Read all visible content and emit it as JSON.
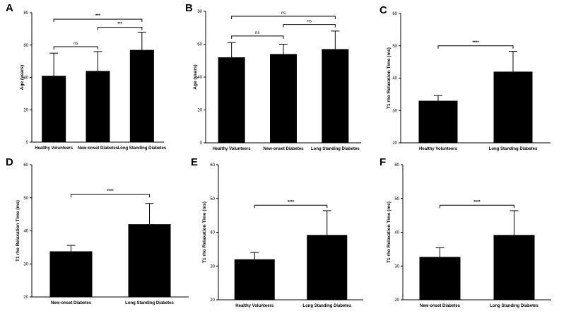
{
  "chart_data": [
    {
      "panel": "A",
      "type": "bar",
      "categories": [
        "Healthy Volunteers",
        "New-onset Diabetes",
        "Long Standing Diabetes"
      ],
      "values": [
        41,
        44,
        57
      ],
      "errors": [
        14,
        12,
        11
      ],
      "ylabel": "Age (years)",
      "ylim": [
        0,
        80
      ],
      "yticks": [
        0,
        20,
        40,
        60,
        80
      ],
      "comparisons": [
        {
          "from": 0,
          "to": 2,
          "label": "***",
          "y": 76
        },
        {
          "from": 0,
          "to": 1,
          "label": "ns",
          "y": 59
        },
        {
          "from": 1,
          "to": 2,
          "label": "***",
          "y": 71
        }
      ]
    },
    {
      "panel": "B",
      "type": "bar",
      "categories": [
        "Healthy Volunteers",
        "New-onset Diabetes",
        "Long Standing Diabetes"
      ],
      "values": [
        52,
        54,
        57
      ],
      "errors": [
        9,
        6,
        11
      ],
      "ylabel": "Age (years)",
      "ylim": [
        0,
        80
      ],
      "yticks": [
        0,
        20,
        40,
        60,
        80
      ],
      "comparisons": [
        {
          "from": 0,
          "to": 2,
          "label": "ns",
          "y": 77
        },
        {
          "from": 0,
          "to": 1,
          "label": "ns",
          "y": 65
        },
        {
          "from": 1,
          "to": 2,
          "label": "ns",
          "y": 72
        }
      ]
    },
    {
      "panel": "C",
      "type": "bar",
      "categories": [
        "Healthy Volunteers",
        "Long Standing Diabetes"
      ],
      "values": [
        33,
        42
      ],
      "errors": [
        1.6,
        6.3
      ],
      "ylabel": "T1 rho Relaxation Time (ms)",
      "ylim": [
        20,
        60
      ],
      "yticks": [
        20,
        30,
        40,
        50,
        60
      ],
      "comparisons": [
        {
          "from": 0,
          "to": 1,
          "label": "****",
          "y": 50
        }
      ]
    },
    {
      "panel": "D",
      "type": "bar",
      "categories": [
        "New-onset Diabetes",
        "Long Standing Diabetes"
      ],
      "values": [
        33.8,
        42
      ],
      "errors": [
        1.8,
        6.3
      ],
      "ylabel": "T1 rho Relaxation Time (ms)",
      "ylim": [
        20,
        60
      ],
      "yticks": [
        20,
        30,
        40,
        50,
        60
      ],
      "comparisons": [
        {
          "from": 0,
          "to": 1,
          "label": "****",
          "y": 51
        }
      ]
    },
    {
      "panel": "E",
      "type": "bar",
      "categories": [
        "Healthy Volunteers",
        "Long Standing Diabetes"
      ],
      "values": [
        32,
        39.2
      ],
      "errors": [
        2,
        7.2
      ],
      "ylabel": "T1 rho Relaxation Time (ms)",
      "ylim": [
        20,
        60
      ],
      "yticks": [
        20,
        30,
        40,
        50,
        60
      ],
      "comparisons": [
        {
          "from": 0,
          "to": 1,
          "label": "****",
          "y": 48
        }
      ]
    },
    {
      "panel": "F",
      "type": "bar",
      "categories": [
        "New-onset Diabetes",
        "Long Standing Diabetes"
      ],
      "values": [
        32.7,
        39.2
      ],
      "errors": [
        2.7,
        7.2
      ],
      "ylabel": "T1 rho Relaxation Time (ms)",
      "ylim": [
        20,
        60
      ],
      "yticks": [
        20,
        30,
        40,
        50,
        60
      ],
      "comparisons": [
        {
          "from": 0,
          "to": 1,
          "label": "****",
          "y": 48
        }
      ]
    }
  ]
}
